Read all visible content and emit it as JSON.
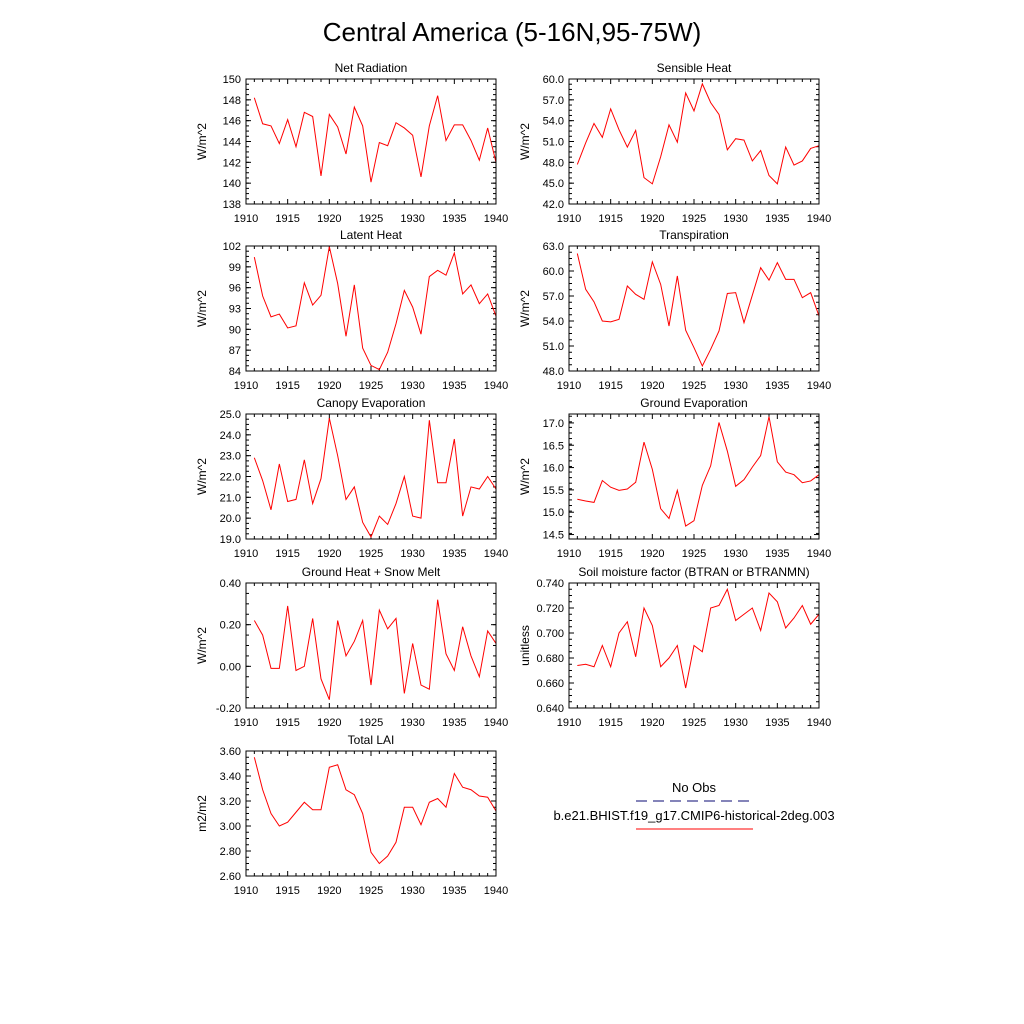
{
  "figure": {
    "title": "Central America (5-16N,95-75W)",
    "legend": {
      "obs_label": "No Obs",
      "model_label": "b.e21.BHIST.f19_g17.CMIP6-historical-2deg.003",
      "obs_color": "#3b3b8f",
      "model_color": "#ff0000"
    }
  },
  "chart_data": [
    {
      "type": "line",
      "title": "Net Radiation",
      "ylabel": "W/m^2",
      "xlim": [
        1910,
        1940
      ],
      "ylim": [
        138,
        150
      ],
      "xticks": [
        "1910",
        "1915",
        "1920",
        "1925",
        "1930",
        "1935",
        "1940"
      ],
      "yticks": [
        "138",
        "140",
        "142",
        "144",
        "146",
        "148",
        "150"
      ],
      "series": [
        {
          "color": "#ff0000",
          "x": [
            1911,
            1912,
            1913,
            1914,
            1915,
            1916,
            1917,
            1918,
            1919,
            1920,
            1921,
            1922,
            1923,
            1924,
            1925,
            1926,
            1927,
            1928,
            1929,
            1930,
            1931,
            1932,
            1933,
            1934,
            1935,
            1936,
            1937,
            1938,
            1939,
            1940
          ],
          "values": [
            148.2,
            145.7,
            145.5,
            143.8,
            146.1,
            143.5,
            146.8,
            146.4,
            140.7,
            146.6,
            145.4,
            142.8,
            147.3,
            145.5,
            140.1,
            143.9,
            143.6,
            145.8,
            145.3,
            144.6,
            140.6,
            145.5,
            148.4,
            144.1,
            145.6,
            145.6,
            144.1,
            142.2,
            145.3,
            142.0
          ]
        }
      ]
    },
    {
      "type": "line",
      "title": "Sensible Heat",
      "ylabel": "W/m^2",
      "xlim": [
        1910,
        1940
      ],
      "ylim": [
        42,
        60
      ],
      "xticks": [
        "1910",
        "1915",
        "1920",
        "1925",
        "1930",
        "1935",
        "1940"
      ],
      "yticks": [
        "42.0",
        "45.0",
        "48.0",
        "51.0",
        "54.0",
        "57.0",
        "60.0"
      ],
      "series": [
        {
          "color": "#ff0000",
          "x": [
            1911,
            1912,
            1913,
            1914,
            1915,
            1916,
            1917,
            1918,
            1919,
            1920,
            1921,
            1922,
            1923,
            1924,
            1925,
            1926,
            1927,
            1928,
            1929,
            1930,
            1931,
            1932,
            1933,
            1934,
            1935,
            1936,
            1937,
            1938,
            1939,
            1940
          ],
          "values": [
            47.7,
            50.8,
            53.6,
            51.6,
            55.7,
            52.7,
            50.2,
            52.6,
            45.8,
            44.9,
            48.8,
            53.4,
            50.9,
            58.0,
            55.4,
            59.3,
            56.6,
            54.9,
            49.8,
            51.4,
            51.2,
            48.2,
            49.7,
            46.1,
            44.9,
            50.2,
            47.6,
            48.2,
            50.0,
            50.4
          ]
        }
      ]
    },
    {
      "type": "line",
      "title": "Latent Heat",
      "ylabel": "W/m^2",
      "xlim": [
        1910,
        1940
      ],
      "ylim": [
        84,
        102
      ],
      "xticks": [
        "1910",
        "1915",
        "1920",
        "1925",
        "1930",
        "1935",
        "1940"
      ],
      "yticks": [
        "84",
        "87",
        "90",
        "93",
        "96",
        "99",
        "102"
      ],
      "series": [
        {
          "color": "#ff0000",
          "x": [
            1911,
            1912,
            1913,
            1914,
            1915,
            1916,
            1917,
            1918,
            1919,
            1920,
            1921,
            1922,
            1923,
            1924,
            1925,
            1926,
            1927,
            1928,
            1929,
            1930,
            1931,
            1932,
            1933,
            1934,
            1935,
            1936,
            1937,
            1938,
            1939,
            1940
          ],
          "values": [
            100.4,
            94.8,
            91.8,
            92.2,
            90.2,
            90.5,
            96.7,
            93.5,
            94.9,
            101.9,
            96.6,
            89.0,
            96.4,
            87.3,
            84.8,
            84.2,
            86.7,
            90.8,
            95.6,
            93.2,
            89.3,
            97.6,
            98.5,
            97.8,
            101.0,
            95.1,
            96.4,
            93.7,
            95.1,
            91.9
          ]
        }
      ]
    },
    {
      "type": "line",
      "title": "Transpiration",
      "ylabel": "W/m^2",
      "xlim": [
        1910,
        1940
      ],
      "ylim": [
        48,
        63
      ],
      "xticks": [
        "1910",
        "1915",
        "1920",
        "1925",
        "1930",
        "1935",
        "1940"
      ],
      "yticks": [
        "48.0",
        "51.0",
        "54.0",
        "57.0",
        "60.0",
        "63.0"
      ],
      "series": [
        {
          "color": "#ff0000",
          "x": [
            1911,
            1912,
            1913,
            1914,
            1915,
            1916,
            1917,
            1918,
            1919,
            1920,
            1921,
            1922,
            1923,
            1924,
            1925,
            1926,
            1927,
            1928,
            1929,
            1930,
            1931,
            1932,
            1933,
            1934,
            1935,
            1936,
            1937,
            1938,
            1939,
            1940
          ],
          "values": [
            62.1,
            57.8,
            56.3,
            54.0,
            53.9,
            54.2,
            58.2,
            57.2,
            56.6,
            61.1,
            58.4,
            53.4,
            59.4,
            52.9,
            50.8,
            48.6,
            50.6,
            52.8,
            57.3,
            57.4,
            53.8,
            57.1,
            60.4,
            58.9,
            61.0,
            59.0,
            59.0,
            56.8,
            57.4,
            54.6
          ]
        }
      ]
    },
    {
      "type": "line",
      "title": "Canopy Evaporation",
      "ylabel": "W/m^2",
      "xlim": [
        1910,
        1940
      ],
      "ylim": [
        19,
        25
      ],
      "xticks": [
        "1910",
        "1915",
        "1920",
        "1925",
        "1930",
        "1935",
        "1940"
      ],
      "yticks": [
        "19.0",
        "20.0",
        "21.0",
        "22.0",
        "23.0",
        "24.0",
        "25.0"
      ],
      "series": [
        {
          "color": "#ff0000",
          "x": [
            1911,
            1912,
            1913,
            1914,
            1915,
            1916,
            1917,
            1918,
            1919,
            1920,
            1921,
            1922,
            1923,
            1924,
            1925,
            1926,
            1927,
            1928,
            1929,
            1930,
            1931,
            1932,
            1933,
            1934,
            1935,
            1936,
            1937,
            1938,
            1939,
            1940
          ],
          "values": [
            22.9,
            21.8,
            20.4,
            22.6,
            20.8,
            20.9,
            22.8,
            20.7,
            21.9,
            24.8,
            23.0,
            20.9,
            21.5,
            19.8,
            19.1,
            20.1,
            19.7,
            20.7,
            22.0,
            20.1,
            20.0,
            24.7,
            21.7,
            21.7,
            23.8,
            20.1,
            21.5,
            21.4,
            22.0,
            21.4
          ]
        }
      ]
    },
    {
      "type": "line",
      "title": "Ground Evaporation",
      "ylabel": "W/m^2",
      "xlim": [
        1910,
        1940
      ],
      "ylim": [
        14.4,
        17.2
      ],
      "xticks": [
        "1910",
        "1915",
        "1920",
        "1925",
        "1930",
        "1935",
        "1940"
      ],
      "yticks": [
        "14.5",
        "15.0",
        "15.5",
        "16.0",
        "16.5",
        "17.0"
      ],
      "series": [
        {
          "color": "#ff0000",
          "x": [
            1911,
            1912,
            1913,
            1914,
            1915,
            1916,
            1917,
            1918,
            1919,
            1920,
            1921,
            1922,
            1923,
            1924,
            1925,
            1926,
            1927,
            1928,
            1929,
            1930,
            1931,
            1932,
            1933,
            1934,
            1935,
            1936,
            1937,
            1938,
            1939,
            1940
          ],
          "values": [
            15.29,
            15.25,
            15.22,
            15.71,
            15.56,
            15.49,
            15.52,
            15.67,
            16.57,
            15.96,
            15.08,
            14.86,
            15.49,
            14.69,
            14.81,
            15.6,
            16.04,
            17.01,
            16.37,
            15.58,
            15.73,
            16.01,
            16.27,
            17.14,
            16.13,
            15.9,
            15.84,
            15.66,
            15.7,
            15.84
          ]
        }
      ]
    },
    {
      "type": "line",
      "title": "Ground Heat + Snow Melt",
      "ylabel": "W/m^2",
      "xlim": [
        1910,
        1940
      ],
      "ylim": [
        -0.2,
        0.4
      ],
      "xticks": [
        "1910",
        "1915",
        "1920",
        "1925",
        "1930",
        "1935",
        "1940"
      ],
      "yticks": [
        "-0.20",
        "0.00",
        "0.20",
        "0.40"
      ],
      "series": [
        {
          "color": "#ff0000",
          "x": [
            1911,
            1912,
            1913,
            1914,
            1915,
            1916,
            1917,
            1918,
            1919,
            1920,
            1921,
            1922,
            1923,
            1924,
            1925,
            1926,
            1927,
            1928,
            1929,
            1930,
            1931,
            1932,
            1933,
            1934,
            1935,
            1936,
            1937,
            1938,
            1939,
            1940
          ],
          "values": [
            0.22,
            0.15,
            -0.01,
            -0.01,
            0.29,
            -0.02,
            0.0,
            0.23,
            -0.06,
            -0.16,
            0.22,
            0.05,
            0.12,
            0.22,
            -0.09,
            0.27,
            0.18,
            0.23,
            -0.13,
            0.11,
            -0.09,
            -0.11,
            0.32,
            0.06,
            -0.02,
            0.19,
            0.05,
            -0.05,
            0.17,
            0.11
          ]
        }
      ]
    },
    {
      "type": "line",
      "title": "Soil moisture factor (BTRAN or BTRANMN)",
      "ylabel": "unitless",
      "xlim": [
        1910,
        1940
      ],
      "ylim": [
        0.64,
        0.74
      ],
      "xticks": [
        "1910",
        "1915",
        "1920",
        "1925",
        "1930",
        "1935",
        "1940"
      ],
      "yticks": [
        "0.640",
        "0.660",
        "0.680",
        "0.700",
        "0.720",
        "0.740"
      ],
      "series": [
        {
          "color": "#ff0000",
          "x": [
            1911,
            1912,
            1913,
            1914,
            1915,
            1916,
            1917,
            1918,
            1919,
            1920,
            1921,
            1922,
            1923,
            1924,
            1925,
            1926,
            1927,
            1928,
            1929,
            1930,
            1931,
            1932,
            1933,
            1934,
            1935,
            1936,
            1937,
            1938,
            1939,
            1940
          ],
          "values": [
            0.674,
            0.675,
            0.673,
            0.69,
            0.673,
            0.7,
            0.709,
            0.681,
            0.72,
            0.706,
            0.673,
            0.68,
            0.69,
            0.656,
            0.69,
            0.685,
            0.72,
            0.722,
            0.735,
            0.71,
            0.715,
            0.72,
            0.702,
            0.732,
            0.725,
            0.704,
            0.712,
            0.722,
            0.707,
            0.715
          ]
        }
      ]
    },
    {
      "type": "line",
      "title": "Total LAI",
      "ylabel": "m2/m2",
      "xlim": [
        1910,
        1940
      ],
      "ylim": [
        2.6,
        3.6
      ],
      "xticks": [
        "1910",
        "1915",
        "1920",
        "1925",
        "1930",
        "1935",
        "1940"
      ],
      "yticks": [
        "2.60",
        "2.80",
        "3.00",
        "3.20",
        "3.40",
        "3.60"
      ],
      "series": [
        {
          "color": "#ff0000",
          "x": [
            1911,
            1912,
            1913,
            1914,
            1915,
            1916,
            1917,
            1918,
            1919,
            1920,
            1921,
            1922,
            1923,
            1924,
            1925,
            1926,
            1927,
            1928,
            1929,
            1930,
            1931,
            1932,
            1933,
            1934,
            1935,
            1936,
            1937,
            1938,
            1939,
            1940
          ],
          "values": [
            3.55,
            3.29,
            3.1,
            3.0,
            3.03,
            3.11,
            3.19,
            3.13,
            3.13,
            3.47,
            3.49,
            3.29,
            3.25,
            3.1,
            2.79,
            2.7,
            2.76,
            2.87,
            3.15,
            3.15,
            3.01,
            3.19,
            3.22,
            3.15,
            3.42,
            3.31,
            3.29,
            3.24,
            3.23,
            3.12
          ]
        }
      ]
    }
  ]
}
